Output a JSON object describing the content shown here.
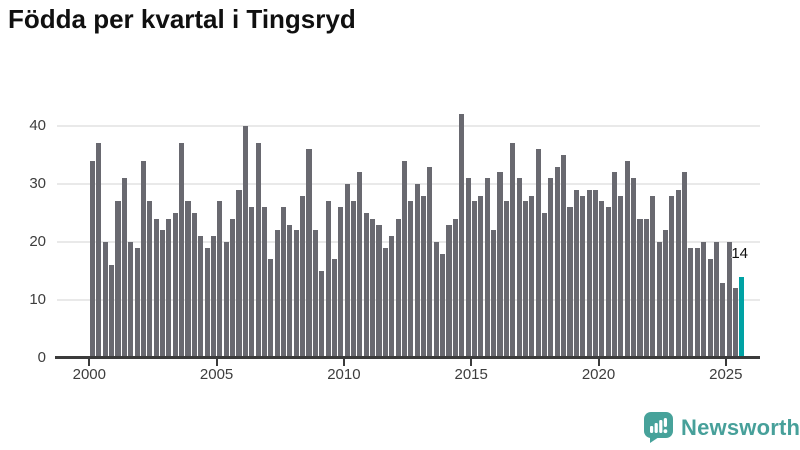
{
  "header": {
    "title": "Födda per kvartal i Tingsryd"
  },
  "chart_data": {
    "type": "bar",
    "title": "Födda per kvartal i Tingsryd",
    "xlabel": "",
    "ylabel": "",
    "ylim": [
      0,
      43
    ],
    "grid": true,
    "legend": "none",
    "quarters": [
      "2000Q1",
      "2000Q2",
      "2000Q3",
      "2000Q4",
      "2001Q1",
      "2001Q2",
      "2001Q3",
      "2001Q4",
      "2002Q1",
      "2002Q2",
      "2002Q3",
      "2002Q4",
      "2003Q1",
      "2003Q2",
      "2003Q3",
      "2003Q4",
      "2004Q1",
      "2004Q2",
      "2004Q3",
      "2004Q4",
      "2005Q1",
      "2005Q2",
      "2005Q3",
      "2005Q4",
      "2006Q1",
      "2006Q2",
      "2006Q3",
      "2006Q4",
      "2007Q1",
      "2007Q2",
      "2007Q3",
      "2007Q4",
      "2008Q1",
      "2008Q2",
      "2008Q3",
      "2008Q4",
      "2009Q1",
      "2009Q2",
      "2009Q3",
      "2009Q4",
      "2010Q1",
      "2010Q2",
      "2010Q3",
      "2010Q4",
      "2011Q1",
      "2011Q2",
      "2011Q3",
      "2011Q4",
      "2012Q1",
      "2012Q2",
      "2012Q3",
      "2012Q4",
      "2013Q1",
      "2013Q2",
      "2013Q3",
      "2013Q4",
      "2014Q1",
      "2014Q2",
      "2014Q3",
      "2014Q4",
      "2015Q1",
      "2015Q2",
      "2015Q3",
      "2015Q4",
      "2016Q1",
      "2016Q2",
      "2016Q3",
      "2016Q4",
      "2017Q1",
      "2017Q2",
      "2017Q3",
      "2017Q4",
      "2018Q1",
      "2018Q2",
      "2018Q3",
      "2018Q4",
      "2019Q1",
      "2019Q2",
      "2019Q3",
      "2019Q4",
      "2020Q1",
      "2020Q2",
      "2020Q3",
      "2020Q4",
      "2021Q1",
      "2021Q2",
      "2021Q3",
      "2021Q4",
      "2022Q1",
      "2022Q2",
      "2022Q3",
      "2022Q4",
      "2023Q1",
      "2023Q2",
      "2023Q3",
      "2023Q4",
      "2024Q1",
      "2024Q2",
      "2024Q3",
      "2024Q4",
      "2025Q1",
      "2025Q2",
      "2025Q3"
    ],
    "values": [
      34,
      37,
      20,
      16,
      27,
      31,
      20,
      19,
      34,
      27,
      24,
      22,
      24,
      25,
      37,
      27,
      25,
      21,
      19,
      21,
      27,
      20,
      24,
      29,
      40,
      26,
      37,
      26,
      17,
      22,
      26,
      23,
      22,
      28,
      36,
      22,
      15,
      27,
      17,
      26,
      30,
      27,
      32,
      25,
      24,
      23,
      19,
      21,
      24,
      34,
      27,
      30,
      28,
      33,
      20,
      18,
      23,
      24,
      42,
      31,
      27,
      28,
      31,
      22,
      32,
      27,
      37,
      31,
      27,
      28,
      36,
      25,
      31,
      33,
      35,
      26,
      29,
      28,
      29,
      29,
      27,
      26,
      32,
      28,
      34,
      31,
      24,
      24,
      28,
      20,
      22,
      28,
      29,
      32,
      19,
      19,
      20,
      17,
      20,
      13,
      20,
      12,
      14
    ],
    "highlight_index": 102,
    "highlight_value_label": "14",
    "yticks": [
      0,
      10,
      20,
      30,
      40
    ],
    "xticks": [
      "2000",
      "2005",
      "2010",
      "2015",
      "2020",
      "2025"
    ],
    "colors": {
      "bar": "#696970",
      "highlight": "#00A2A4",
      "grid": "#E9E9E9",
      "axis": "#3B3B3B",
      "tick_text": "#3D3D3D",
      "title_text": "#101010"
    }
  },
  "footer": {
    "brand": "Newsworthy",
    "brand_color": "#47A09A"
  }
}
